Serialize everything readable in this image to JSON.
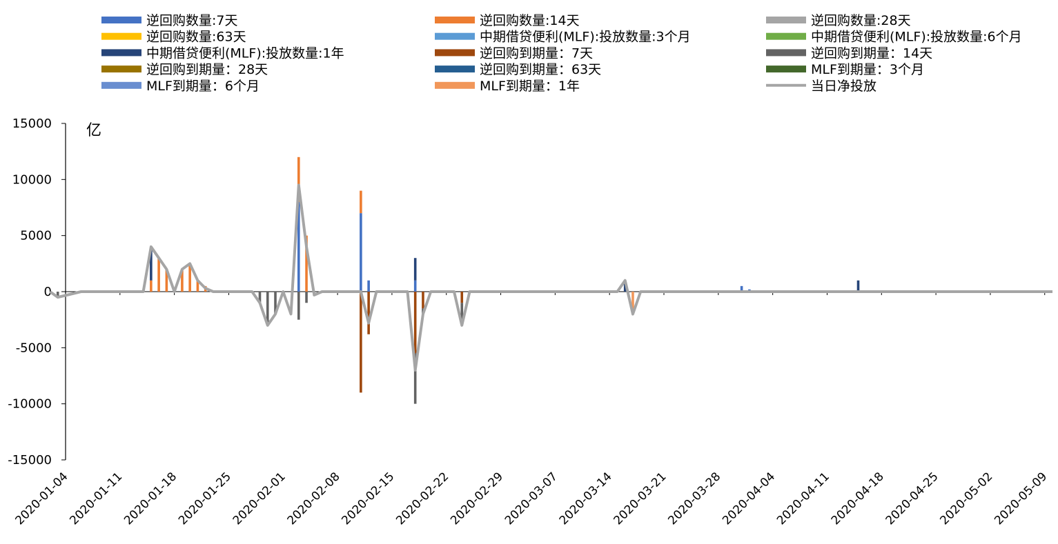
{
  "chart_data": {
    "type": "bar",
    "ylabel": "亿",
    "ylim": [
      -15000,
      15000
    ],
    "yticks": [
      "15000",
      "10000",
      "5000",
      "0",
      "-5000",
      "-10000",
      "-15000"
    ],
    "start_date": "2020-01-04",
    "end_date": "2020-05-10",
    "xtick_labels": [
      "2020-01-04",
      "2020-01-11",
      "2020-01-18",
      "2020-01-25",
      "2020-02-01",
      "2020-02-08",
      "2020-02-15",
      "2020-02-22",
      "2020-02-29",
      "2020-03-07",
      "2020-03-14",
      "2020-03-21",
      "2020-03-28",
      "2020-04-04",
      "2020-04-11",
      "2020-04-18",
      "2020-04-25",
      "2020-05-02",
      "2020-05-09"
    ],
    "legend_position": "top",
    "grid": false,
    "series": [
      {
        "name": "逆回购数量:7天",
        "color": "#4472C4",
        "kind": "bar",
        "points": [
          {
            "x": "2020-02-03",
            "y": 8000
          },
          {
            "x": "2020-02-11",
            "y": 7000
          },
          {
            "x": "2020-02-12",
            "y": 1000
          },
          {
            "x": "2020-02-18",
            "y": 1000
          },
          {
            "x": "2020-03-31",
            "y": 500
          },
          {
            "x": "2020-04-01",
            "y": 200
          }
        ]
      },
      {
        "name": "逆回购数量:14天",
        "color": "#ED7D31",
        "kind": "bar",
        "points": [
          {
            "x": "2020-01-15",
            "y": 1000
          },
          {
            "x": "2020-01-16",
            "y": 3000
          },
          {
            "x": "2020-01-17",
            "y": 2000
          },
          {
            "x": "2020-01-19",
            "y": 2000
          },
          {
            "x": "2020-01-20",
            "y": 2300
          },
          {
            "x": "2020-01-21",
            "y": 1000
          },
          {
            "x": "2020-01-22",
            "y": 500
          },
          {
            "x": "2020-02-03",
            "y": 4000
          },
          {
            "x": "2020-02-04",
            "y": 5000
          },
          {
            "x": "2020-02-11",
            "y": 2000
          }
        ]
      },
      {
        "name": "逆回购数量:28天",
        "color": "#A5A5A5",
        "kind": "bar",
        "points": []
      },
      {
        "name": "逆回购数量:63天",
        "color": "#FFC000",
        "kind": "bar",
        "points": []
      },
      {
        "name": "中期借贷便利(MLF):投放数量:3个月",
        "color": "#5B9BD5",
        "kind": "bar",
        "points": []
      },
      {
        "name": "中期借贷便利(MLF):投放数量:6个月",
        "color": "#70AD47",
        "kind": "bar",
        "points": []
      },
      {
        "name": "中期借贷便利(MLF):投放数量:1年",
        "color": "#264478",
        "kind": "bar",
        "points": [
          {
            "x": "2020-01-15",
            "y": 3000
          },
          {
            "x": "2020-02-18",
            "y": 2000
          },
          {
            "x": "2020-03-16",
            "y": 1000
          },
          {
            "x": "2020-04-15",
            "y": 1000
          }
        ]
      },
      {
        "name": "逆回购到期量：7天",
        "color": "#9E480E",
        "kind": "bar",
        "points": [
          {
            "x": "2020-02-11",
            "y": -9000
          },
          {
            "x": "2020-02-12",
            "y": -3800
          },
          {
            "x": "2020-02-18",
            "y": -5500
          },
          {
            "x": "2020-02-19",
            "y": -1500
          },
          {
            "x": "2020-02-24",
            "y": -1000
          }
        ]
      },
      {
        "name": "逆回购到期量：14天",
        "color": "#636363",
        "kind": "bar",
        "points": [
          {
            "x": "2020-01-03",
            "y": -500
          },
          {
            "x": "2020-01-29",
            "y": -1000
          },
          {
            "x": "2020-01-30",
            "y": -3000
          },
          {
            "x": "2020-01-31",
            "y": -2000
          },
          {
            "x": "2020-02-03",
            "y": -2500
          },
          {
            "x": "2020-02-04",
            "y": -1000
          },
          {
            "x": "2020-02-18",
            "y": -4500
          },
          {
            "x": "2020-02-19",
            "y": -500
          },
          {
            "x": "2020-02-24",
            "y": -2000
          }
        ]
      },
      {
        "name": "逆回购到期量：28天",
        "color": "#997300",
        "kind": "bar",
        "points": []
      },
      {
        "name": "逆回购到期量：63天",
        "color": "#255E91",
        "kind": "bar",
        "points": []
      },
      {
        "name": "MLF到期量：3个月",
        "color": "#43682B",
        "kind": "bar",
        "points": []
      },
      {
        "name": "MLF到期量：6个月",
        "color": "#698ED0",
        "kind": "bar",
        "points": []
      },
      {
        "name": "MLF到期量：1年",
        "color": "#F1975A",
        "kind": "bar",
        "points": [
          {
            "x": "2020-03-17",
            "y": -2000
          }
        ]
      },
      {
        "name": "当日净投放",
        "color": "#A5A5A5",
        "kind": "line",
        "points": [
          {
            "x": "2020-01-02",
            "y": 0
          },
          {
            "x": "2020-01-03",
            "y": -500
          },
          {
            "x": "2020-01-06",
            "y": 0
          },
          {
            "x": "2020-01-14",
            "y": 0
          },
          {
            "x": "2020-01-15",
            "y": 4000
          },
          {
            "x": "2020-01-16",
            "y": 3000
          },
          {
            "x": "2020-01-17",
            "y": 2000
          },
          {
            "x": "2020-01-18",
            "y": 0
          },
          {
            "x": "2020-01-19",
            "y": 2000
          },
          {
            "x": "2020-01-20",
            "y": 2500
          },
          {
            "x": "2020-01-21",
            "y": 1000
          },
          {
            "x": "2020-01-22",
            "y": 300
          },
          {
            "x": "2020-01-23",
            "y": 0
          },
          {
            "x": "2020-01-28",
            "y": 0
          },
          {
            "x": "2020-01-29",
            "y": -1000
          },
          {
            "x": "2020-01-30",
            "y": -3000
          },
          {
            "x": "2020-01-31",
            "y": -2000
          },
          {
            "x": "2020-02-01",
            "y": 0
          },
          {
            "x": "2020-02-02",
            "y": -2000
          },
          {
            "x": "2020-02-03",
            "y": 9500
          },
          {
            "x": "2020-02-04",
            "y": 4000
          },
          {
            "x": "2020-02-05",
            "y": -300
          },
          {
            "x": "2020-02-06",
            "y": 0
          },
          {
            "x": "2020-02-10",
            "y": 0
          },
          {
            "x": "2020-02-11",
            "y": 0
          },
          {
            "x": "2020-02-12",
            "y": -2800
          },
          {
            "x": "2020-02-13",
            "y": 0
          },
          {
            "x": "2020-02-17",
            "y": 0
          },
          {
            "x": "2020-02-18",
            "y": -7000
          },
          {
            "x": "2020-02-19",
            "y": -2000
          },
          {
            "x": "2020-02-20",
            "y": 0
          },
          {
            "x": "2020-02-23",
            "y": 0
          },
          {
            "x": "2020-02-24",
            "y": -3000
          },
          {
            "x": "2020-02-25",
            "y": 0
          },
          {
            "x": "2020-03-15",
            "y": 0
          },
          {
            "x": "2020-03-16",
            "y": 1000
          },
          {
            "x": "2020-03-17",
            "y": -2000
          },
          {
            "x": "2020-03-18",
            "y": 0
          },
          {
            "x": "2020-05-10",
            "y": 0
          }
        ]
      }
    ]
  }
}
